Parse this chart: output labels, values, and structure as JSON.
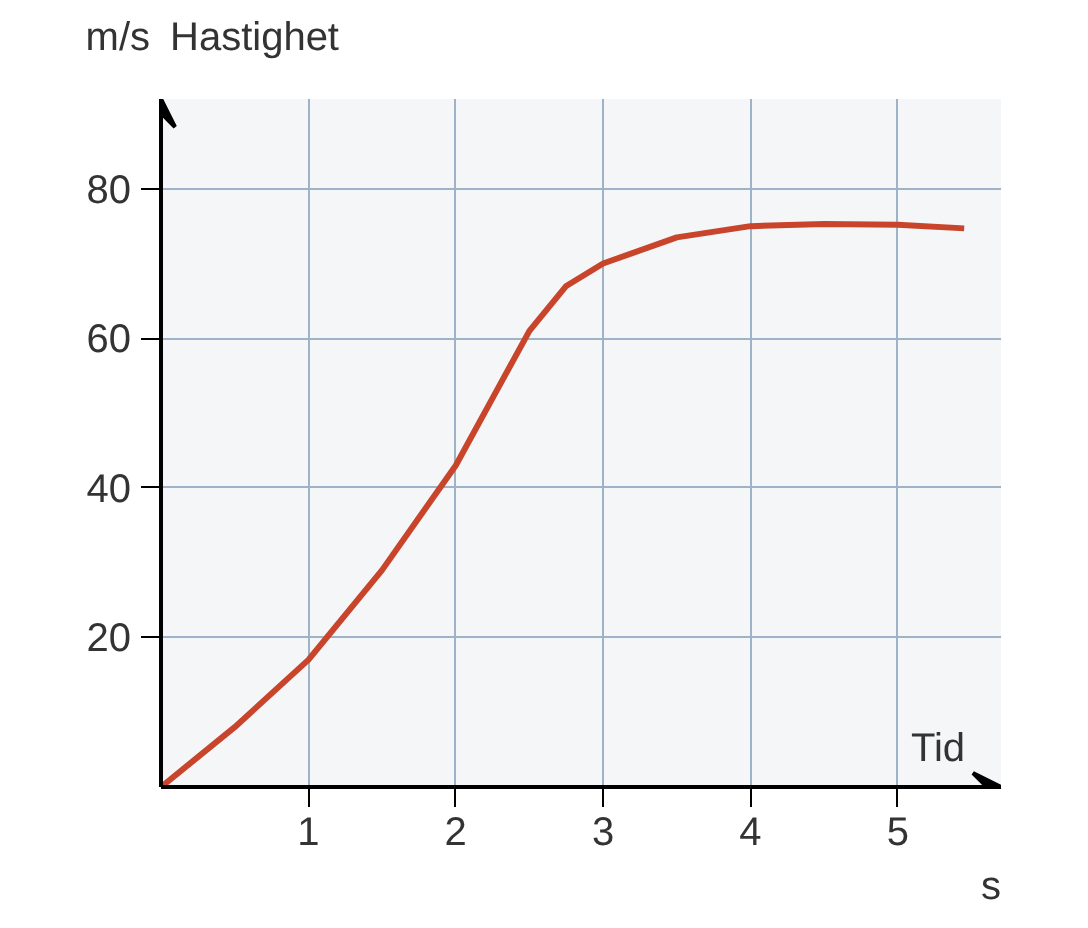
{
  "chart_data": {
    "type": "line",
    "xlabel": "Tid",
    "ylabel": "Hastighet",
    "annotations": [
      "m/s",
      "s"
    ],
    "x": [
      0,
      0.5,
      1,
      1.5,
      2,
      2.25,
      2.5,
      2.75,
      3,
      3.5,
      4,
      4.5,
      5,
      5.45
    ],
    "series": [
      {
        "color": "#c8452c",
        "values": [
          0,
          8,
          17,
          29,
          43,
          52,
          61,
          67,
          70,
          73.5,
          75,
          75.3,
          75.2,
          74.7
        ]
      }
    ],
    "xlim": [
      0,
      5.7
    ],
    "ylim": [
      0,
      92
    ],
    "xticks": [
      1,
      2,
      3,
      4,
      5
    ],
    "yticks": [
      20,
      40,
      60,
      80
    ],
    "grid": true,
    "marker": "none",
    "line_style": "solid"
  }
}
